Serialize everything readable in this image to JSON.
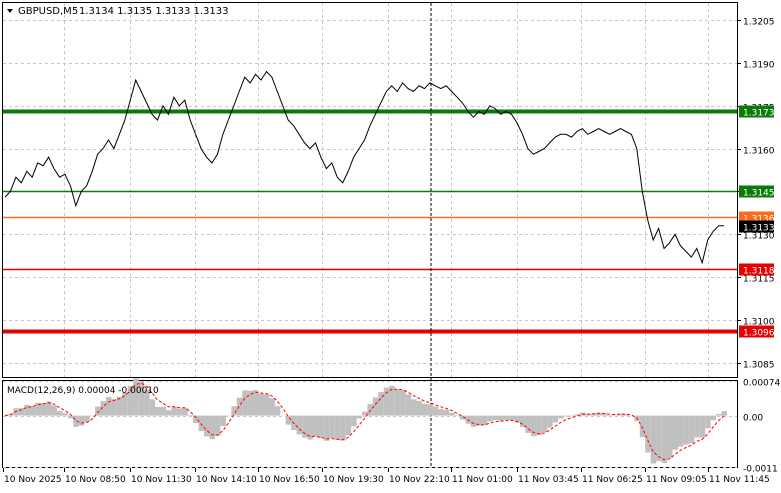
{
  "header": {
    "symbol_tf": "GBPUSD,M5",
    "ohlc": "1.3134 1.3135 1.3133 1.3133"
  },
  "macd": {
    "label": "MACD(12,26,9) 0.00004 -0.00010",
    "ticks": [
      "0.00074",
      "0.00",
      "-0.0011"
    ]
  },
  "colors": {
    "green": "#0a7a0a",
    "red": "#e60000",
    "orange": "#ff6a1a",
    "grid": "#c8c8c8",
    "histogram": "#c0c0c0",
    "signal": "#ff0000"
  },
  "chart_data": {
    "type": "line",
    "symbol": "GBPUSD",
    "timeframe": "M5",
    "price_ticks": [
      "1.3205",
      "1.3190",
      "1.3175",
      "1.3160",
      "1.3145",
      "1.3130",
      "1.3115",
      "1.3100",
      "1.3085"
    ],
    "ylim": [
      1.308,
      1.3211
    ],
    "time_ticks": [
      "10 Nov 2025",
      "10 Nov 08:50",
      "10 Nov 11:30",
      "10 Nov 14:10",
      "10 Nov 16:50",
      "10 Nov 19:30",
      "10 Nov 22:10",
      "11 Nov 01:00",
      "11 Nov 03:45",
      "11 Nov 06:25",
      "11 Nov 09:05",
      "11 Nov 11:45"
    ],
    "levels": [
      {
        "label": "1.3173",
        "value": 1.3173,
        "color": "green",
        "thick": true
      },
      {
        "label": "1.3145",
        "value": 1.3145,
        "color": "green",
        "thick": false
      },
      {
        "label": "1.3136",
        "value": 1.3136,
        "color": "orange",
        "thick": false
      },
      {
        "label": "1.3118",
        "value": 1.3118,
        "color": "red",
        "thick": false
      },
      {
        "label": "1.3096",
        "value": 1.3096,
        "color": "red",
        "thick": true
      }
    ],
    "current_price": "1.3133",
    "series": [
      {
        "values": [
          1.3143,
          1.3145,
          1.315,
          1.3148,
          1.3152,
          1.315,
          1.3155,
          1.3154,
          1.3157,
          1.3153,
          1.315,
          1.3151,
          1.3147,
          1.314,
          1.3145,
          1.3147,
          1.3152,
          1.3158,
          1.316,
          1.3163,
          1.316,
          1.3165,
          1.317,
          1.3177,
          1.3184,
          1.318,
          1.3176,
          1.3172,
          1.317,
          1.3175,
          1.3172,
          1.3178,
          1.3175,
          1.3177,
          1.317,
          1.3165,
          1.316,
          1.3157,
          1.3155,
          1.3158,
          1.3165,
          1.317,
          1.3175,
          1.318,
          1.3185,
          1.3183,
          1.3186,
          1.3184,
          1.3187,
          1.3185,
          1.318,
          1.3175,
          1.317,
          1.3168,
          1.3165,
          1.3162,
          1.316,
          1.3162,
          1.3157,
          1.3153,
          1.3155,
          1.315,
          1.3148,
          1.3152,
          1.3157,
          1.316,
          1.3163,
          1.3168,
          1.3172,
          1.3176,
          1.318,
          1.3182,
          1.318,
          1.3183,
          1.3181,
          1.318,
          1.3182,
          1.3181,
          1.3183,
          1.3182,
          1.3181,
          1.3182,
          1.318,
          1.3178,
          1.3176,
          1.3173,
          1.3171,
          1.3173,
          1.3172,
          1.3175,
          1.3174,
          1.3172,
          1.3173,
          1.3172,
          1.3169,
          1.3165,
          1.316,
          1.3158,
          1.3159,
          1.316,
          1.3162,
          1.3164,
          1.3165,
          1.3165,
          1.3164,
          1.3166,
          1.3167,
          1.3165,
          1.3166,
          1.3167,
          1.3166,
          1.3165,
          1.3166,
          1.3167,
          1.3166,
          1.3165,
          1.316,
          1.3145,
          1.3135,
          1.3128,
          1.3132,
          1.3125,
          1.3127,
          1.313,
          1.3126,
          1.3124,
          1.3122,
          1.3125,
          1.312,
          1.3128,
          1.3131,
          1.3133,
          1.3133
        ]
      }
    ]
  }
}
